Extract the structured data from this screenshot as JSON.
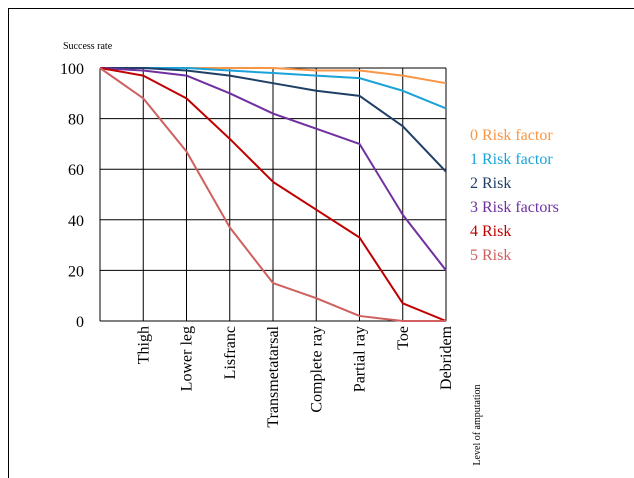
{
  "chart_data": {
    "type": "line",
    "ylabel": "Success rate",
    "xlabel": "Level of amputation",
    "categories": [
      "",
      "Thigh",
      "Lower leg",
      "Lisfranc",
      "Transmetatarsal",
      "Complete ray",
      "Partial ray",
      "Toe",
      "Debridem"
    ],
    "ylim": [
      0,
      100
    ],
    "yticks": [
      0,
      20,
      40,
      60,
      80,
      100
    ],
    "grid": true,
    "legend_position": "right",
    "series": [
      {
        "name": "0 Risk factor",
        "color": "#f79646",
        "values": [
          100,
          100,
          100,
          100,
          100,
          99,
          99,
          97,
          94
        ]
      },
      {
        "name": "1 Risk factor",
        "color": "#1aa3d9",
        "values": [
          100,
          100,
          100,
          99,
          98,
          97,
          96,
          91,
          84
        ]
      },
      {
        "name": "2 Risk",
        "color": "#1f3f66",
        "values": [
          100,
          100,
          99,
          97,
          94,
          91,
          89,
          77,
          59
        ]
      },
      {
        "name": "3 Risk factors",
        "color": "#7030a0",
        "values": [
          100,
          99,
          97,
          90,
          82,
          76,
          70,
          42,
          20
        ]
      },
      {
        "name": "4 Risk",
        "color": "#c00000",
        "values": [
          100,
          97,
          88,
          72,
          55,
          44,
          33,
          7,
          0
        ]
      },
      {
        "name": "5 Risk",
        "color": "#d05f5f",
        "values": [
          100,
          88,
          67,
          37,
          15,
          9,
          2,
          0,
          0
        ]
      }
    ]
  }
}
